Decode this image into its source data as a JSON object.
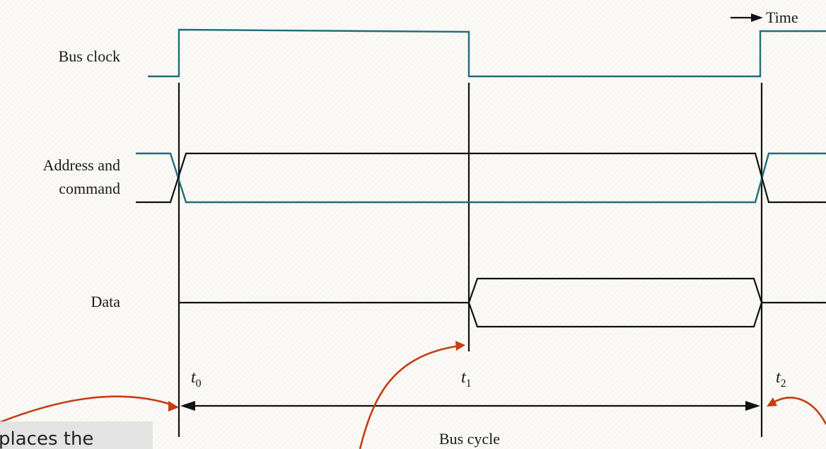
{
  "diagram": {
    "time_label": "Time",
    "signals": {
      "bus_clock": "Bus clock",
      "address_line1": "Address and",
      "address_line2": "command",
      "data": "Data"
    },
    "time_marks": [
      {
        "letter": "t",
        "sub": "0"
      },
      {
        "letter": "t",
        "sub": "1"
      },
      {
        "letter": "t",
        "sub": "2"
      }
    ],
    "bus_cycle_label": "Bus cycle",
    "colors": {
      "signal_teal": "#1d6f7a",
      "signal_black": "#111111",
      "arrow_red": "#c43e12"
    }
  },
  "caption": {
    "text": "places the"
  }
}
